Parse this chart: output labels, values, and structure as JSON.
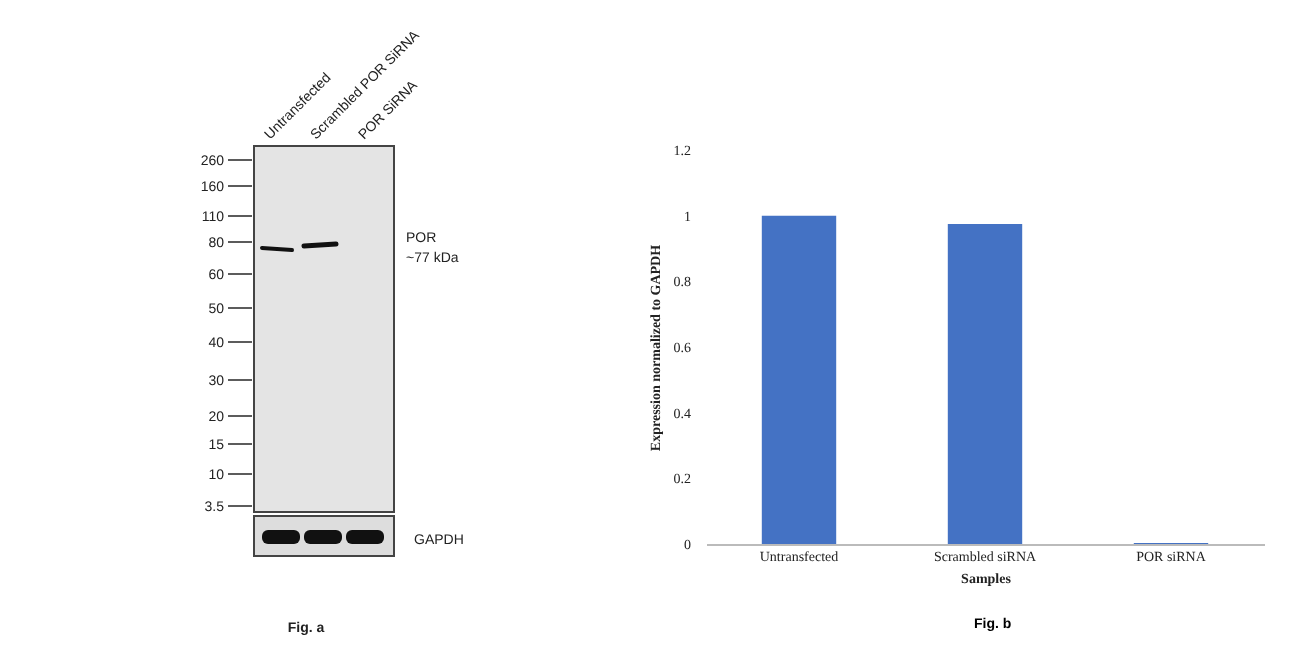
{
  "chart_data": [
    {
      "type": "other",
      "annotations": [
        "Untransfected",
        "Scrambled POR SiRNA",
        "POR SiRNA",
        "260",
        "160",
        "110",
        "80",
        "60",
        "50",
        "40",
        "30",
        "20",
        "15",
        "10",
        "3.5",
        "POR",
        "~77 kDa",
        "GAPDH",
        "Fig. a"
      ]
    },
    {
      "type": "bar",
      "categories": [
        "Untransfected",
        "Scrambled siRNA",
        "POR siRNA"
      ],
      "values": [
        1,
        0.975,
        0.003
      ],
      "color": "#4472c4",
      "xlabel": "Samples",
      "ylabel": "Expression normalized to GAPDH",
      "ylim": [
        0,
        1.2
      ],
      "yticks": [
        0,
        0.2,
        0.4,
        0.6,
        0.8,
        1,
        1.2
      ],
      "annotations": [
        "Fig. b"
      ]
    }
  ]
}
